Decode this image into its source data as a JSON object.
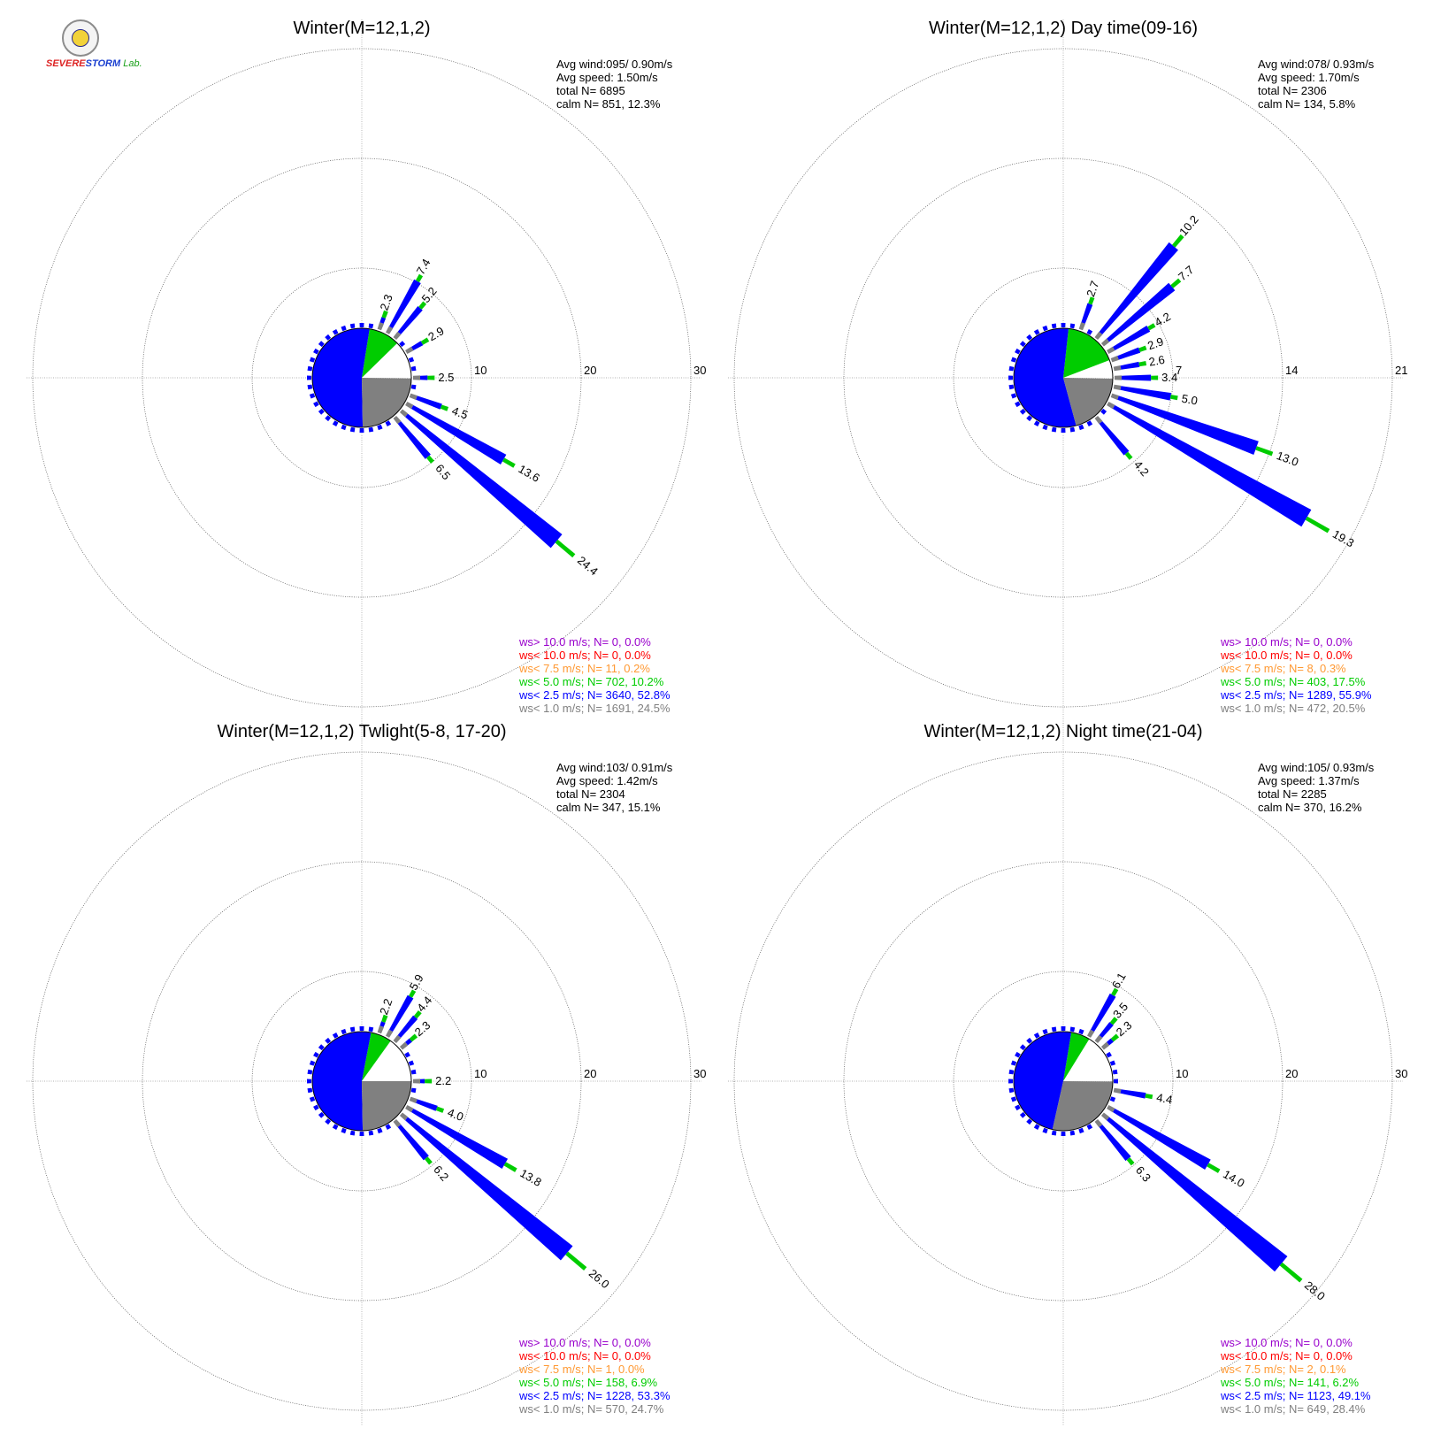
{
  "logo": {
    "brand_a": "SEVERE",
    "brand_b": "STORM",
    "brand_c": "Lab."
  },
  "colors": {
    "purple": "#9900cc",
    "red": "#ff0000",
    "orange": "#ff9933",
    "green": "#00cc00",
    "blue": "#0000ff",
    "gray": "#808080",
    "calm": "#ffffff",
    "grid": "#999999"
  },
  "chart_data": [
    {
      "type": "windrose",
      "title": "Winter(M=12,1,2)",
      "ring_labels": [
        "10",
        "20",
        "30"
      ],
      "rmax": 30,
      "stats": [
        "Avg wind:095/ 0.90m/s",
        "Avg speed: 1.50m/s",
        "total N=      6895",
        "calm N=    851,  12.3%"
      ],
      "legend": [
        {
          "text": "ws> 10.0 m/s; N=      0,  0.0%",
          "color": "purple"
        },
        {
          "text": "ws< 10.0 m/s; N=      0,  0.0%",
          "color": "red"
        },
        {
          "text": "ws<  7.5 m/s; N=     11,  0.2%",
          "color": "orange"
        },
        {
          "text": "ws<  5.0 m/s; N=   702, 10.2%",
          "color": "green"
        },
        {
          "text": "ws<  2.5 m/s; N=  3640, 52.8%",
          "color": "blue"
        },
        {
          "text": "ws<  1.0 m/s; N=  1691, 24.5%",
          "color": "gray"
        }
      ],
      "calm_pie": [
        {
          "class": "calm",
          "percent": 12.3
        },
        {
          "class": "green",
          "percent": 10.2
        },
        {
          "class": "blue",
          "percent": 52.8
        },
        {
          "class": "gray",
          "percent": 24.5
        }
      ],
      "labeled_bars": [
        {
          "direction_deg": 30,
          "total": 7.4,
          "label": "7.4"
        },
        {
          "direction_deg": 40,
          "total": 5.2,
          "label": "5.2"
        },
        {
          "direction_deg": 60,
          "total": 2.9,
          "label": "2.9"
        },
        {
          "direction_deg": 20,
          "total": 2.3,
          "label": "2.3"
        },
        {
          "direction_deg": 90,
          "total": 2.5,
          "label": "2.5"
        },
        {
          "direction_deg": 110,
          "total": 4.5,
          "label": "4.5"
        },
        {
          "direction_deg": 120,
          "total": 13.6,
          "label": "13.6"
        },
        {
          "direction_deg": 130,
          "total": 24.4,
          "label": "24.4"
        },
        {
          "direction_deg": 140,
          "total": 6.5,
          "label": "6.5"
        }
      ]
    },
    {
      "type": "windrose",
      "title": "Winter(M=12,1,2) Day time(09-16)",
      "ring_labels": [
        "7",
        "14",
        "21"
      ],
      "rmax": 21,
      "stats": [
        "Avg wind:078/ 0.93m/s",
        "Avg speed: 1.70m/s",
        "total N=      2306",
        "calm N=    134,   5.8%"
      ],
      "legend": [
        {
          "text": "ws> 10.0 m/s; N=      0,  0.0%",
          "color": "purple"
        },
        {
          "text": "ws< 10.0 m/s; N=      0,  0.0%",
          "color": "red"
        },
        {
          "text": "ws<  7.5 m/s; N=      8,  0.3%",
          "color": "orange"
        },
        {
          "text": "ws<  5.0 m/s; N=   403, 17.5%",
          "color": "green"
        },
        {
          "text": "ws<  2.5 m/s; N=  1289, 55.9%",
          "color": "blue"
        },
        {
          "text": "ws<  1.0 m/s; N=    472, 20.5%",
          "color": "gray"
        }
      ],
      "calm_pie": [
        {
          "class": "calm",
          "percent": 5.8
        },
        {
          "class": "green",
          "percent": 17.5
        },
        {
          "class": "blue",
          "percent": 55.9
        },
        {
          "class": "gray",
          "percent": 20.5
        }
      ],
      "labeled_bars": [
        {
          "direction_deg": 40,
          "total": 10.2,
          "label": "10.2"
        },
        {
          "direction_deg": 50,
          "total": 7.7,
          "label": "7.7"
        },
        {
          "direction_deg": 60,
          "total": 4.2,
          "label": "4.2"
        },
        {
          "direction_deg": 20,
          "total": 2.7,
          "label": "2.7"
        },
        {
          "direction_deg": 70,
          "total": 2.9,
          "label": "2.9"
        },
        {
          "direction_deg": 80,
          "total": 2.6,
          "label": "2.6"
        },
        {
          "direction_deg": 90,
          "total": 3.4,
          "label": "3.4"
        },
        {
          "direction_deg": 100,
          "total": 5.0,
          "label": "5.0"
        },
        {
          "direction_deg": 110,
          "total": 13.0,
          "label": "13.0"
        },
        {
          "direction_deg": 120,
          "total": 19.3,
          "label": "19.3"
        },
        {
          "direction_deg": 140,
          "total": 4.2,
          "label": "4.2"
        }
      ]
    },
    {
      "type": "windrose",
      "title": "Winter(M=12,1,2) Twlight(5-8, 17-20)",
      "ring_labels": [
        "10",
        "20",
        "30"
      ],
      "rmax": 30,
      "stats": [
        "Avg wind:103/ 0.91m/s",
        "Avg speed: 1.42m/s",
        "total N=      2304",
        "calm N=    347,  15.1%"
      ],
      "legend": [
        {
          "text": "ws> 10.0 m/s; N=      0,  0.0%",
          "color": "purple"
        },
        {
          "text": "ws< 10.0 m/s; N=      0,  0.0%",
          "color": "red"
        },
        {
          "text": "ws<  7.5 m/s; N=      1,  0.0%",
          "color": "orange"
        },
        {
          "text": "ws<  5.0 m/s; N=   158,  6.9%",
          "color": "green"
        },
        {
          "text": "ws<  2.5 m/s; N=  1228, 53.3%",
          "color": "blue"
        },
        {
          "text": "ws<  1.0 m/s; N=    570, 24.7%",
          "color": "gray"
        }
      ],
      "calm_pie": [
        {
          "class": "calm",
          "percent": 15.1
        },
        {
          "class": "green",
          "percent": 6.9
        },
        {
          "class": "blue",
          "percent": 53.3
        },
        {
          "class": "gray",
          "percent": 24.7
        }
      ],
      "labeled_bars": [
        {
          "direction_deg": 30,
          "total": 5.9,
          "label": "5.9"
        },
        {
          "direction_deg": 40,
          "total": 4.4,
          "label": "4.4"
        },
        {
          "direction_deg": 50,
          "total": 2.3,
          "label": "2.3"
        },
        {
          "direction_deg": 20,
          "total": 2.2,
          "label": "2.2"
        },
        {
          "direction_deg": 90,
          "total": 2.2,
          "label": "2.2"
        },
        {
          "direction_deg": 110,
          "total": 4.0,
          "label": "4.0"
        },
        {
          "direction_deg": 120,
          "total": 13.8,
          "label": "13.8"
        },
        {
          "direction_deg": 130,
          "total": 26.0,
          "label": "26.0"
        },
        {
          "direction_deg": 140,
          "total": 6.2,
          "label": "6.2"
        }
      ]
    },
    {
      "type": "windrose",
      "title": "Winter(M=12,1,2) Night time(21-04)",
      "ring_labels": [
        "10",
        "20",
        "30"
      ],
      "rmax": 30,
      "stats": [
        "Avg wind:105/ 0.93m/s",
        "Avg speed: 1.37m/s",
        "total N=      2285",
        "calm N=    370,  16.2%"
      ],
      "legend": [
        {
          "text": "ws> 10.0 m/s; N=      0,  0.0%",
          "color": "purple"
        },
        {
          "text": "ws< 10.0 m/s; N=      0,  0.0%",
          "color": "red"
        },
        {
          "text": "ws<  7.5 m/s; N=      2,  0.1%",
          "color": "orange"
        },
        {
          "text": "ws<  5.0 m/s; N=   141,  6.2%",
          "color": "green"
        },
        {
          "text": "ws<  2.5 m/s; N=  1123, 49.1%",
          "color": "blue"
        },
        {
          "text": "ws<  1.0 m/s; N=    649, 28.4%",
          "color": "gray"
        }
      ],
      "calm_pie": [
        {
          "class": "calm",
          "percent": 16.2
        },
        {
          "class": "green",
          "percent": 6.2
        },
        {
          "class": "blue",
          "percent": 49.1
        },
        {
          "class": "gray",
          "percent": 28.4
        }
      ],
      "labeled_bars": [
        {
          "direction_deg": 30,
          "total": 6.1,
          "label": "6.1"
        },
        {
          "direction_deg": 40,
          "total": 3.5,
          "label": "3.5"
        },
        {
          "direction_deg": 50,
          "total": 2.3,
          "label": "2.3"
        },
        {
          "direction_deg": 100,
          "total": 4.4,
          "label": "4.4"
        },
        {
          "direction_deg": 120,
          "total": 14.0,
          "label": "14.0"
        },
        {
          "direction_deg": 130,
          "total": 28.0,
          "label": "28.0"
        },
        {
          "direction_deg": 140,
          "total": 6.3,
          "label": "6.3"
        }
      ]
    }
  ]
}
